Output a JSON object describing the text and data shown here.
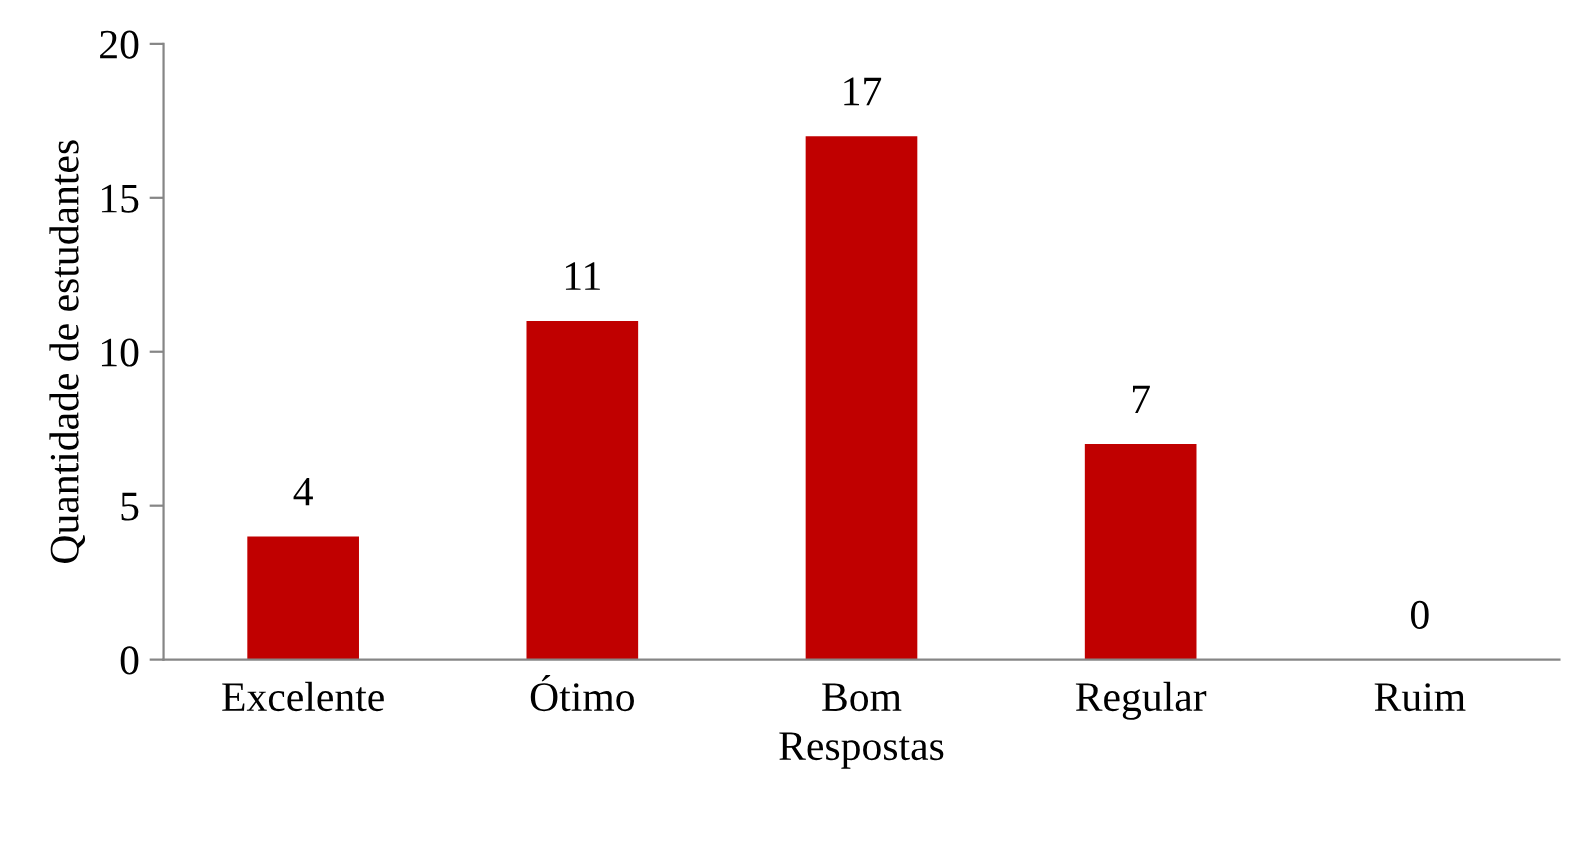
{
  "chart_data": {
    "type": "bar",
    "xlabel": "Respostas",
    "ylabel": "Quantidade de estudantes",
    "categories": [
      "Excelente",
      "Ótimo",
      "Bom",
      "Regular",
      "Ruim"
    ],
    "values": [
      4,
      11,
      17,
      7,
      0
    ],
    "color": "#c00000",
    "ylim": [
      0,
      20
    ],
    "yticks": [
      0,
      5,
      10,
      15,
      20
    ],
    "grid": false,
    "data_labels": true
  }
}
